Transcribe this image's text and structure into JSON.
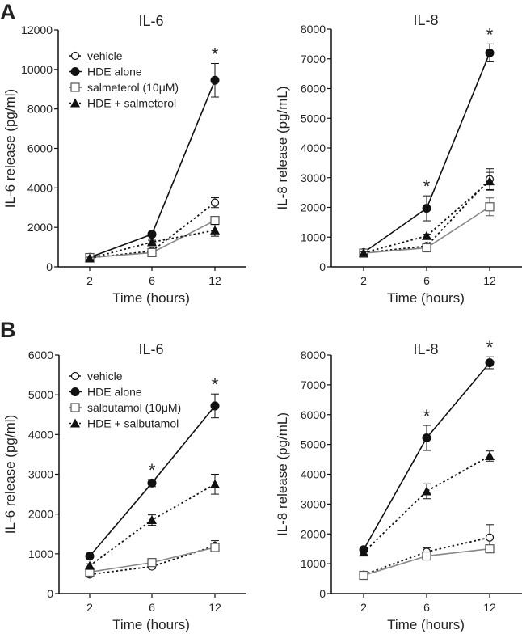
{
  "panel_labels": [
    "A",
    "B"
  ],
  "chart_data": [
    {
      "type": "line",
      "panel": "A",
      "title": "IL-6",
      "xlabel": "Time (hours)",
      "ylabel": "IL-6 release (pg/ml)",
      "categories": [
        "2",
        "6",
        "12"
      ],
      "ylim": [
        0,
        12000
      ],
      "yticks": [
        0,
        2000,
        4000,
        6000,
        8000,
        10000,
        12000
      ],
      "legend": "top-left",
      "significance_marker": "*",
      "significant_at": [
        "12"
      ],
      "series": [
        {
          "name": "vehicle",
          "values": [
            450,
            800,
            3250
          ],
          "errors": [
            60,
            80,
            250
          ],
          "marker": "open-circle",
          "line": "dotted",
          "color": "#111111"
        },
        {
          "name": "HDE alone",
          "values": [
            480,
            1650,
            9450
          ],
          "errors": [
            60,
            100,
            850
          ],
          "marker": "filled-circle",
          "line": "solid",
          "color": "#111111"
        },
        {
          "name": "salmeterol (10μM)",
          "values": [
            470,
            720,
            2350
          ],
          "errors": [
            60,
            80,
            200
          ],
          "marker": "open-square",
          "line": "solid",
          "color": "#888888"
        },
        {
          "name": "HDE + salmeterol",
          "values": [
            430,
            1250,
            1850
          ],
          "errors": [
            60,
            100,
            300
          ],
          "marker": "filled-triangle",
          "line": "dotted",
          "color": "#111111"
        }
      ]
    },
    {
      "type": "line",
      "panel": "A",
      "title": "IL-8",
      "xlabel": "Time (hours)",
      "ylabel": "IL-8 release (pg/mL)",
      "categories": [
        "2",
        "6",
        "12"
      ],
      "ylim": [
        0,
        8000
      ],
      "yticks": [
        0,
        1000,
        2000,
        3000,
        4000,
        5000,
        6000,
        7000,
        8000
      ],
      "significance_marker": "*",
      "significant_at": [
        "6",
        "12"
      ],
      "series": [
        {
          "name": "vehicle",
          "values": [
            470,
            700,
            2950
          ],
          "errors": [
            40,
            60,
            350
          ],
          "marker": "open-circle",
          "line": "dotted",
          "color": "#111111"
        },
        {
          "name": "HDE alone",
          "values": [
            480,
            1970,
            7200
          ],
          "errors": [
            40,
            420,
            300
          ],
          "marker": "filled-circle",
          "line": "solid",
          "color": "#111111"
        },
        {
          "name": "salmeterol (10μM)",
          "values": [
            460,
            640,
            2020
          ],
          "errors": [
            40,
            60,
            300
          ],
          "marker": "open-square",
          "line": "solid",
          "color": "#888888"
        },
        {
          "name": "HDE + salmeterol",
          "values": [
            470,
            1040,
            2880
          ],
          "errors": [
            40,
            60,
            300
          ],
          "marker": "filled-triangle",
          "line": "dotted",
          "color": "#111111"
        }
      ]
    },
    {
      "type": "line",
      "panel": "B",
      "title": "IL-6",
      "xlabel": "Time (hours)",
      "ylabel": "IL-6 release (pg/ml)",
      "categories": [
        "2",
        "6",
        "12"
      ],
      "ylim": [
        0,
        6000
      ],
      "yticks": [
        0,
        1000,
        2000,
        3000,
        4000,
        5000,
        6000
      ],
      "legend": "top-left",
      "significance_marker": "*",
      "significant_at": [
        "6",
        "12"
      ],
      "series": [
        {
          "name": "vehicle",
          "values": [
            480,
            680,
            1200
          ],
          "errors": [
            40,
            50,
            130
          ],
          "marker": "open-circle",
          "line": "dotted",
          "color": "#111111"
        },
        {
          "name": "HDE alone",
          "values": [
            940,
            2780,
            4720
          ],
          "errors": [
            40,
            90,
            300
          ],
          "marker": "filled-circle",
          "line": "solid",
          "color": "#111111"
        },
        {
          "name": "salbutamol (10μM)",
          "values": [
            540,
            780,
            1160
          ],
          "errors": [
            40,
            60,
            100
          ],
          "marker": "open-square",
          "line": "solid",
          "color": "#888888"
        },
        {
          "name": "HDE + salbutamol",
          "values": [
            700,
            1850,
            2750
          ],
          "errors": [
            50,
            130,
            250
          ],
          "marker": "filled-triangle",
          "line": "dotted",
          "color": "#111111"
        }
      ]
    },
    {
      "type": "line",
      "panel": "B",
      "title": "IL-8",
      "xlabel": "Time (hours)",
      "ylabel": "IL-8 release (pg/mL)",
      "categories": [
        "2",
        "6",
        "12"
      ],
      "ylim": [
        0,
        8000
      ],
      "yticks": [
        0,
        1000,
        2000,
        3000,
        4000,
        5000,
        6000,
        7000,
        8000
      ],
      "significance_marker": "*",
      "significant_at": [
        "6",
        "12"
      ],
      "series": [
        {
          "name": "vehicle",
          "values": [
            630,
            1400,
            1880
          ],
          "errors": [
            80,
            130,
            430
          ],
          "marker": "open-circle",
          "line": "dotted",
          "color": "#111111"
        },
        {
          "name": "HDE alone",
          "values": [
            1470,
            5220,
            7740
          ],
          "errors": [
            80,
            420,
            200
          ],
          "marker": "filled-circle",
          "line": "solid",
          "color": "#111111"
        },
        {
          "name": "salbutamol (10μM)",
          "values": [
            610,
            1260,
            1500
          ],
          "errors": [
            60,
            80,
            80
          ],
          "marker": "open-square",
          "line": "solid",
          "color": "#888888"
        },
        {
          "name": "HDE + salbutamol",
          "values": [
            1380,
            3430,
            4610
          ],
          "errors": [
            80,
            250,
            170
          ],
          "marker": "filled-triangle",
          "line": "dotted",
          "color": "#111111"
        }
      ]
    }
  ]
}
